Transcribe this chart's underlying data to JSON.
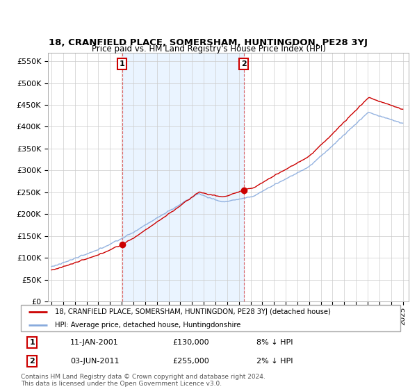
{
  "title": "18, CRANFIELD PLACE, SOMERSHAM, HUNTINGDON, PE28 3YJ",
  "subtitle": "Price paid vs. HM Land Registry's House Price Index (HPI)",
  "yticks": [
    0,
    50000,
    100000,
    150000,
    200000,
    250000,
    300000,
    350000,
    400000,
    450000,
    500000,
    550000
  ],
  "ylim": [
    0,
    570000
  ],
  "line_prop_color": "#cc0000",
  "line_hpi_color": "#88aadd",
  "shade_color": "#ddeeff",
  "marker_color": "#cc0000",
  "purchase1_year": 2001.04,
  "purchase1_value": 130000,
  "purchase2_year": 2011.42,
  "purchase2_value": 255000,
  "legend_line1": "18, CRANFIELD PLACE, SOMERSHAM, HUNTINGDON, PE28 3YJ (detached house)",
  "legend_line2": "HPI: Average price, detached house, Huntingdonshire",
  "table_row1_num": "1",
  "table_row1_date": "11-JAN-2001",
  "table_row1_price": "£130,000",
  "table_row1_hpi": "8% ↓ HPI",
  "table_row2_num": "2",
  "table_row2_date": "03-JUN-2011",
  "table_row2_price": "£255,000",
  "table_row2_hpi": "2% ↓ HPI",
  "footnote1": "Contains HM Land Registry data © Crown copyright and database right 2024.",
  "footnote2": "This data is licensed under the Open Government Licence v3.0.",
  "bg_color": "#ffffff",
  "grid_color": "#cccccc",
  "box_color": "#cc0000",
  "xlim_left": 1994.7,
  "xlim_right": 2025.5
}
